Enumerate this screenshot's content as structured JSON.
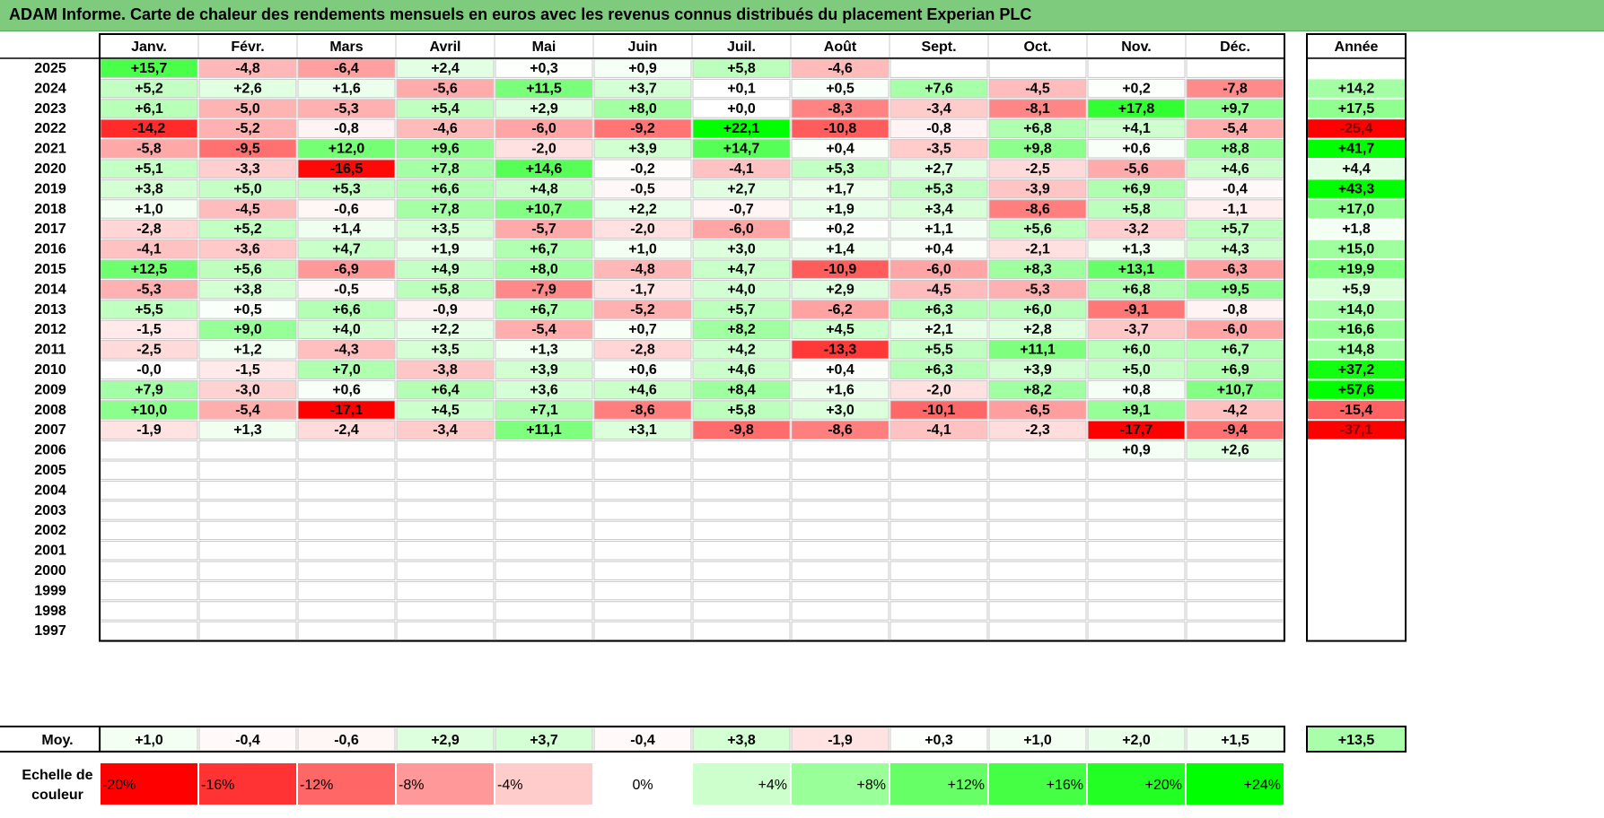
{
  "title": "ADAM Informe. Carte de chaleur des rendements mensuels en euros avec les revenus connus distribués du placement Experian PLC",
  "chart_data": {
    "type": "heatmap",
    "months": [
      "Janv.",
      "Févr.",
      "Mars",
      "Avril",
      "Mai",
      "Juin",
      "Juil.",
      "Août",
      "Sept.",
      "Oct.",
      "Nov.",
      "Déc."
    ],
    "year_header": "Année",
    "years": [
      "2025",
      "2024",
      "2023",
      "2022",
      "2021",
      "2020",
      "2019",
      "2018",
      "2017",
      "2016",
      "2015",
      "2014",
      "2013",
      "2012",
      "2011",
      "2010",
      "2009",
      "2008",
      "2007",
      "2006",
      "2005",
      "2004",
      "2003",
      "2002",
      "2001",
      "2000",
      "1999",
      "1998",
      "1997"
    ],
    "values": [
      [
        "+15,7",
        "-4,8",
        "-6,4",
        "+2,4",
        "+0,3",
        "+0,9",
        "+5,8",
        "-4,6",
        "",
        "",
        "",
        ""
      ],
      [
        "+5,2",
        "+2,6",
        "+1,6",
        "-5,6",
        "+11,5",
        "+3,7",
        "+0,1",
        "+0,5",
        "+7,6",
        "-4,5",
        "+0,2",
        "-7,8"
      ],
      [
        "+6,1",
        "-5,0",
        "-5,3",
        "+5,4",
        "+2,9",
        "+8,0",
        "+0,0",
        "-8,3",
        "-3,4",
        "-8,1",
        "+17,8",
        "+9,7"
      ],
      [
        "-14,2",
        "-5,2",
        "-0,8",
        "-4,6",
        "-6,0",
        "-9,2",
        "+22,1",
        "-10,8",
        "-0,8",
        "+6,8",
        "+4,1",
        "-5,4"
      ],
      [
        "-5,8",
        "-9,5",
        "+12,0",
        "+9,6",
        "-2,0",
        "+3,9",
        "+14,7",
        "+0,4",
        "-3,5",
        "+9,8",
        "+0,6",
        "+8,8"
      ],
      [
        "+5,1",
        "-3,3",
        "-16,5",
        "+7,8",
        "+14,6",
        "-0,2",
        "-4,1",
        "+5,3",
        "+2,7",
        "-2,5",
        "-5,6",
        "+4,6"
      ],
      [
        "+3,8",
        "+5,0",
        "+5,3",
        "+6,6",
        "+4,8",
        "-0,5",
        "+2,7",
        "+1,7",
        "+5,3",
        "-3,9",
        "+6,9",
        "-0,4"
      ],
      [
        "+1,0",
        "-4,5",
        "-0,6",
        "+7,8",
        "+10,7",
        "+2,2",
        "-0,7",
        "+1,9",
        "+3,4",
        "-8,6",
        "+5,8",
        "-1,1"
      ],
      [
        "-2,8",
        "+5,2",
        "+1,4",
        "+3,5",
        "-5,7",
        "-2,0",
        "-6,0",
        "+0,2",
        "+1,1",
        "+5,6",
        "-3,2",
        "+5,7"
      ],
      [
        "-4,1",
        "-3,6",
        "+4,7",
        "+1,9",
        "+6,7",
        "+1,0",
        "+3,0",
        "+1,4",
        "+0,4",
        "-2,1",
        "+1,3",
        "+4,3"
      ],
      [
        "+12,5",
        "+5,6",
        "-6,9",
        "+4,9",
        "+8,0",
        "-4,8",
        "+4,7",
        "-10,9",
        "-6,0",
        "+8,3",
        "+13,1",
        "-6,3"
      ],
      [
        "-5,3",
        "+3,8",
        "-0,5",
        "+5,8",
        "-7,9",
        "-1,7",
        "+4,0",
        "+2,9",
        "-4,5",
        "-5,3",
        "+6,8",
        "+9,5"
      ],
      [
        "+5,5",
        "+0,5",
        "+6,6",
        "-0,9",
        "+6,7",
        "-5,2",
        "+5,7",
        "-6,2",
        "+6,3",
        "+6,0",
        "-9,1",
        "-0,8"
      ],
      [
        "-1,5",
        "+9,0",
        "+4,0",
        "+2,2",
        "-5,4",
        "+0,7",
        "+8,2",
        "+4,5",
        "+2,1",
        "+2,8",
        "-3,7",
        "-6,0"
      ],
      [
        "-2,5",
        "+1,2",
        "-4,3",
        "+3,5",
        "+1,3",
        "-2,8",
        "+4,2",
        "-13,3",
        "+5,5",
        "+11,1",
        "+6,0",
        "+6,7"
      ],
      [
        "-0,0",
        "-1,5",
        "+7,0",
        "-3,8",
        "+3,9",
        "+0,6",
        "+4,6",
        "+0,4",
        "+6,3",
        "+3,9",
        "+5,0",
        "+6,9"
      ],
      [
        "+7,9",
        "-3,0",
        "+0,6",
        "+6,4",
        "+3,6",
        "+4,6",
        "+8,4",
        "+1,6",
        "-2,0",
        "+8,2",
        "+0,8",
        "+10,7"
      ],
      [
        "+10,0",
        "-5,4",
        "-17,1",
        "+4,5",
        "+7,1",
        "-8,6",
        "+5,8",
        "+3,0",
        "-10,1",
        "-6,5",
        "+9,1",
        "-4,2"
      ],
      [
        "-1,9",
        "+1,3",
        "-2,4",
        "-3,4",
        "+11,1",
        "+3,1",
        "-9,8",
        "-8,6",
        "-4,1",
        "-2,3",
        "-17,7",
        "-9,4"
      ],
      [
        "",
        "",
        "",
        "",
        "",
        "",
        "",
        "",
        "",
        "",
        "+0,9",
        "+2,6"
      ],
      [
        "",
        "",
        "",
        "",
        "",
        "",
        "",
        "",
        "",
        "",
        "",
        ""
      ],
      [
        "",
        "",
        "",
        "",
        "",
        "",
        "",
        "",
        "",
        "",
        "",
        ""
      ],
      [
        "",
        "",
        "",
        "",
        "",
        "",
        "",
        "",
        "",
        "",
        "",
        ""
      ],
      [
        "",
        "",
        "",
        "",
        "",
        "",
        "",
        "",
        "",
        "",
        "",
        ""
      ],
      [
        "",
        "",
        "",
        "",
        "",
        "",
        "",
        "",
        "",
        "",
        "",
        ""
      ],
      [
        "",
        "",
        "",
        "",
        "",
        "",
        "",
        "",
        "",
        "",
        "",
        ""
      ],
      [
        "",
        "",
        "",
        "",
        "",
        "",
        "",
        "",
        "",
        "",
        "",
        ""
      ],
      [
        "",
        "",
        "",
        "",
        "",
        "",
        "",
        "",
        "",
        "",
        "",
        ""
      ],
      [
        "",
        "",
        "",
        "",
        "",
        "",
        "",
        "",
        "",
        "",
        "",
        ""
      ]
    ],
    "annual": [
      "",
      "+14,2",
      "+17,5",
      "-25,4",
      "+41,7",
      "+4,4",
      "+43,3",
      "+17,0",
      "+1,8",
      "+15,0",
      "+19,9",
      "+5,9",
      "+14,0",
      "+16,6",
      "+14,8",
      "+37,2",
      "+57,6",
      "-15,4",
      "-37,1",
      "",
      "",
      "",
      "",
      "",
      "",
      "",
      "",
      "",
      ""
    ],
    "avg_label": "Moy.",
    "avg_values": [
      "+1,0",
      "-0,4",
      "-0,6",
      "+2,9",
      "+3,7",
      "-0,4",
      "+3,8",
      "-1,9",
      "+0,3",
      "+1,0",
      "+2,0",
      "+1,5"
    ],
    "avg_annual": "+13,5",
    "scale_label_line1": "Echelle de",
    "scale_label_line2": "couleur",
    "scale": [
      {
        "label": "-20%",
        "value": -20,
        "color": "#ff0000"
      },
      {
        "label": "-16%",
        "value": -16,
        "color": "#ff3333"
      },
      {
        "label": "-12%",
        "value": -12,
        "color": "#ff6666"
      },
      {
        "label": "-8%",
        "value": -8,
        "color": "#ff9999"
      },
      {
        "label": "-4%",
        "value": -4,
        "color": "#ffcccc"
      },
      {
        "label": "0%",
        "value": 0,
        "color": "#ffffff"
      },
      {
        "label": "+4%",
        "value": 4,
        "color": "#ccffcc"
      },
      {
        "label": "+8%",
        "value": 8,
        "color": "#99ff99"
      },
      {
        "label": "+12%",
        "value": 12,
        "color": "#66ff66"
      },
      {
        "label": "+16%",
        "value": 16,
        "color": "#44ff44"
      },
      {
        "label": "+20%",
        "value": 20,
        "color": "#22ff22"
      },
      {
        "label": "+24%",
        "value": 24,
        "color": "#00ff00"
      }
    ],
    "colors": {
      "negative_max": "#ff0000",
      "neutral": "#ffffff",
      "positive_max": "#00ff00",
      "title_bg": "#7ecb7e"
    }
  }
}
